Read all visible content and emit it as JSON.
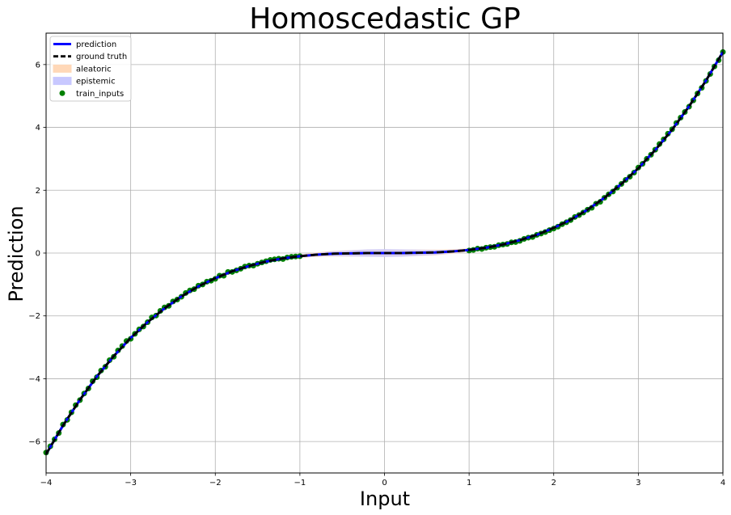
{
  "chart_data": {
    "type": "line",
    "title": "Homoscedastic GP",
    "xlabel": "Input",
    "ylabel": "Prediction",
    "xlim": [
      -4,
      4
    ],
    "ylim": [
      -7,
      7
    ],
    "xticks": [
      -4,
      -3,
      -2,
      -1,
      0,
      1,
      2,
      3,
      4
    ],
    "yticks": [
      -6,
      -4,
      -2,
      0,
      2,
      4,
      6
    ],
    "xtick_labels": [
      "−4",
      "−3",
      "−2",
      "−1",
      "0",
      "1",
      "2",
      "3",
      "4"
    ],
    "ytick_labels": [
      "−6",
      "−4",
      "−2",
      "0",
      "2",
      "4",
      "6"
    ],
    "grid": true,
    "legend_position": "top-left",
    "legend": [
      {
        "label": "prediction",
        "kind": "line",
        "color": "#0000ff"
      },
      {
        "label": "ground truth",
        "kind": "dashed",
        "color": "#000000"
      },
      {
        "label": "aleatoric",
        "kind": "patch",
        "color": "#ffd8b8"
      },
      {
        "label": "epistemic",
        "kind": "patch",
        "color": "#c8c8ff"
      },
      {
        "label": "train_inputs",
        "kind": "marker",
        "color": "#008000"
      }
    ],
    "curve": {
      "x": [
        -4,
        -3.8,
        -3.6,
        -3.4,
        -3.2,
        -3,
        -2.8,
        -2.6,
        -2.4,
        -2.2,
        -2,
        -1.8,
        -1.6,
        -1.4,
        -1.2,
        -1,
        -0.8,
        -0.6,
        -0.4,
        -0.2,
        0,
        0.2,
        0.4,
        0.6,
        0.8,
        1,
        1.2,
        1.4,
        1.6,
        1.8,
        2,
        2.2,
        2.4,
        2.6,
        2.8,
        3,
        3.2,
        3.4,
        3.6,
        3.8,
        4
      ],
      "prediction": [
        -6.4,
        -5.49,
        -4.67,
        -3.93,
        -3.28,
        -2.7,
        -2.2,
        -1.76,
        -1.38,
        -1.06,
        -0.8,
        -0.58,
        -0.41,
        -0.27,
        -0.17,
        -0.1,
        -0.05,
        -0.02,
        -0.01,
        0,
        0,
        0,
        0.01,
        0.02,
        0.05,
        0.1,
        0.17,
        0.27,
        0.41,
        0.58,
        0.8,
        1.06,
        1.38,
        1.76,
        2.2,
        2.7,
        3.28,
        3.93,
        4.67,
        5.49,
        6.4
      ],
      "ground_truth": [
        -6.4,
        -5.49,
        -4.67,
        -3.93,
        -3.28,
        -2.7,
        -2.2,
        -1.76,
        -1.38,
        -1.06,
        -0.8,
        -0.58,
        -0.41,
        -0.27,
        -0.17,
        -0.1,
        -0.05,
        -0.02,
        -0.01,
        0,
        0,
        0,
        0.01,
        0.02,
        0.05,
        0.1,
        0.17,
        0.27,
        0.41,
        0.58,
        0.8,
        1.06,
        1.38,
        1.76,
        2.2,
        2.7,
        3.28,
        3.93,
        4.67,
        5.49,
        6.4
      ],
      "aleatoric_halfwidth": [
        0.04,
        0.04,
        0.04,
        0.04,
        0.04,
        0.04,
        0.04,
        0.04,
        0.04,
        0.04,
        0.04,
        0.04,
        0.04,
        0.04,
        0.04,
        0.05,
        0.07,
        0.09,
        0.1,
        0.11,
        0.11,
        0.11,
        0.1,
        0.09,
        0.07,
        0.05,
        0.04,
        0.04,
        0.04,
        0.04,
        0.04,
        0.04,
        0.04,
        0.04,
        0.04,
        0.04,
        0.04,
        0.04,
        0.04,
        0.04,
        0.04
      ],
      "epistemic_halfwidth": [
        0.02,
        0.02,
        0.02,
        0.02,
        0.02,
        0.02,
        0.02,
        0.02,
        0.02,
        0.02,
        0.02,
        0.02,
        0.02,
        0.02,
        0.02,
        0.03,
        0.05,
        0.08,
        0.1,
        0.12,
        0.13,
        0.12,
        0.1,
        0.08,
        0.05,
        0.03,
        0.02,
        0.02,
        0.02,
        0.02,
        0.02,
        0.02,
        0.02,
        0.02,
        0.02,
        0.02,
        0.02,
        0.02,
        0.02,
        0.02,
        0.02
      ]
    },
    "train_inputs": {
      "x": [
        -4,
        -3.95,
        -3.9,
        -3.85,
        -3.8,
        -3.75,
        -3.7,
        -3.65,
        -3.6,
        -3.55,
        -3.5,
        -3.45,
        -3.4,
        -3.35,
        -3.3,
        -3.25,
        -3.2,
        -3.15,
        -3.1,
        -3.05,
        -3,
        -2.95,
        -2.9,
        -2.85,
        -2.8,
        -2.75,
        -2.7,
        -2.65,
        -2.6,
        -2.55,
        -2.5,
        -2.45,
        -2.4,
        -2.35,
        -2.3,
        -2.25,
        -2.2,
        -2.15,
        -2.1,
        -2.05,
        -2,
        -1.95,
        -1.9,
        -1.85,
        -1.8,
        -1.75,
        -1.7,
        -1.65,
        -1.6,
        -1.55,
        -1.5,
        -1.45,
        -1.4,
        -1.35,
        -1.3,
        -1.25,
        -1.2,
        -1.15,
        -1.1,
        -1.05,
        -1,
        1,
        1.05,
        1.1,
        1.15,
        1.2,
        1.25,
        1.3,
        1.35,
        1.4,
        1.45,
        1.5,
        1.55,
        1.6,
        1.65,
        1.7,
        1.75,
        1.8,
        1.85,
        1.9,
        1.95,
        2,
        2.05,
        2.1,
        2.15,
        2.2,
        2.25,
        2.3,
        2.35,
        2.4,
        2.45,
        2.5,
        2.55,
        2.6,
        2.65,
        2.7,
        2.75,
        2.8,
        2.85,
        2.9,
        2.95,
        3,
        3.05,
        3.1,
        3.15,
        3.2,
        3.25,
        3.3,
        3.35,
        3.4,
        3.45,
        3.5,
        3.55,
        3.6,
        3.65,
        3.7,
        3.75,
        3.8,
        3.85,
        3.9,
        3.95,
        4
      ],
      "y": [
        -6.35,
        -6.15,
        -5.93,
        -5.73,
        -5.46,
        -5.31,
        -5.07,
        -4.84,
        -4.68,
        -4.47,
        -4.31,
        -4.08,
        -3.95,
        -3.74,
        -3.62,
        -3.41,
        -3.3,
        -3.1,
        -2.96,
        -2.8,
        -2.73,
        -2.57,
        -2.43,
        -2.34,
        -2.2,
        -2.05,
        -1.99,
        -1.84,
        -1.73,
        -1.68,
        -1.54,
        -1.48,
        -1.39,
        -1.27,
        -1.19,
        -1.15,
        -1.04,
        -1,
        -0.91,
        -0.88,
        -0.82,
        -0.72,
        -0.72,
        -0.6,
        -0.6,
        -0.55,
        -0.5,
        -0.43,
        -0.4,
        -0.4,
        -0.34,
        -0.3,
        -0.26,
        -0.22,
        -0.2,
        -0.18,
        -0.19,
        -0.14,
        -0.12,
        -0.11,
        -0.1,
        0.08,
        0.1,
        0.14,
        0.13,
        0.17,
        0.19,
        0.2,
        0.25,
        0.27,
        0.29,
        0.34,
        0.35,
        0.39,
        0.45,
        0.49,
        0.51,
        0.58,
        0.62,
        0.67,
        0.73,
        0.78,
        0.84,
        0.92,
        0.98,
        1.05,
        1.15,
        1.21,
        1.29,
        1.38,
        1.44,
        1.57,
        1.63,
        1.76,
        1.87,
        1.96,
        2.08,
        2.2,
        2.33,
        2.43,
        2.56,
        2.72,
        2.84,
        3,
        3.13,
        3.29,
        3.47,
        3.62,
        3.8,
        3.94,
        4.14,
        4.31,
        4.49,
        4.66,
        4.86,
        5.08,
        5.26,
        5.48,
        5.7,
        5.94,
        6.14,
        6.4
      ],
      "color": "#008000"
    },
    "colors": {
      "prediction": "#0000ff",
      "ground_truth": "#000000",
      "aleatoric": "#ffd8b8",
      "epistemic": "#c8c8ff",
      "train_inputs": "#008000",
      "grid": "#b0b0b0"
    }
  }
}
